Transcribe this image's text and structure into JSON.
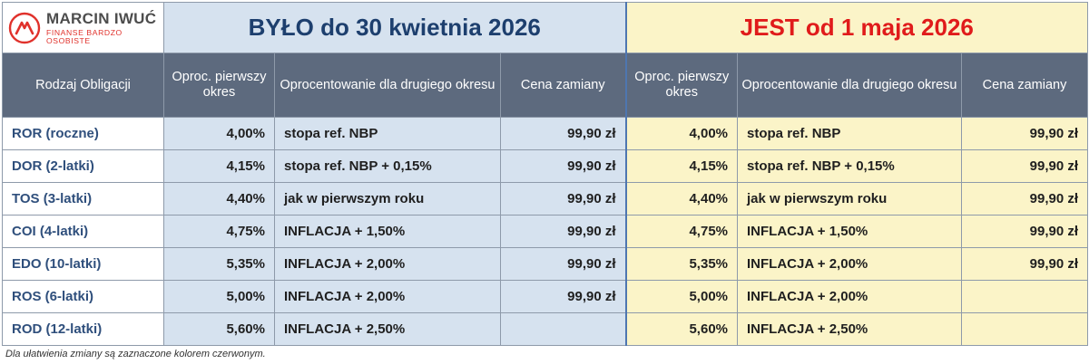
{
  "logo": {
    "name": "MARCIN IWUĆ",
    "subtitle": "FINANSE BARDZO OSOBISTE",
    "colors": {
      "brand_red": "#e0312b",
      "text_gray": "#4d4d4d"
    }
  },
  "groups": {
    "old_title": "BYŁO do 30 kwietnia 2026",
    "new_title": "JEST od 1 maja 2026"
  },
  "headers": {
    "type": "Rodzaj Obligacji",
    "old": {
      "first_period": "Oproc. pierwszy okres",
      "second_period": "Oprocentowanie dla drugiego okresu",
      "exchange_price": "Cena zamiany"
    },
    "new": {
      "first_period": "Oproc. pierwszy okres",
      "second_period": "Oprocentowanie dla drugiego okresu",
      "exchange_price": "Cena zamiany"
    }
  },
  "rows": [
    {
      "name": "ROR (roczne)",
      "old": {
        "first": "4,00%",
        "second": "stopa ref. NBP",
        "price": "99,90 zł"
      },
      "new": {
        "first": "4,00%",
        "second": "stopa ref. NBP",
        "price": "99,90 zł"
      }
    },
    {
      "name": "DOR (2-latki)",
      "old": {
        "first": "4,15%",
        "second": "stopa ref. NBP + 0,15%",
        "price": "99,90 zł"
      },
      "new": {
        "first": "4,15%",
        "second": "stopa ref. NBP + 0,15%",
        "price": "99,90 zł"
      }
    },
    {
      "name": "TOS (3-latki)",
      "old": {
        "first": "4,40%",
        "second": "jak w pierwszym roku",
        "price": "99,90 zł"
      },
      "new": {
        "first": "4,40%",
        "second": "jak w pierwszym roku",
        "price": "99,90 zł"
      }
    },
    {
      "name": "COI (4-latki)",
      "old": {
        "first": "4,75%",
        "second": "INFLACJA + 1,50%",
        "price": "99,90 zł"
      },
      "new": {
        "first": "4,75%",
        "second": "INFLACJA + 1,50%",
        "price": "99,90 zł"
      }
    },
    {
      "name": "EDO (10-latki)",
      "old": {
        "first": "5,35%",
        "second": "INFLACJA + 2,00%",
        "price": "99,90 zł"
      },
      "new": {
        "first": "5,35%",
        "second": "INFLACJA + 2,00%",
        "price": "99,90 zł"
      }
    },
    {
      "name": "ROS (6-latki)",
      "old": {
        "first": "5,00%",
        "second": "INFLACJA + 2,00%",
        "price": "99,90 zł"
      },
      "new": {
        "first": "5,00%",
        "second": "INFLACJA + 2,00%",
        "price": ""
      }
    },
    {
      "name": "ROD (12-latki)",
      "old": {
        "first": "5,60%",
        "second": "INFLACJA + 2,50%",
        "price": ""
      },
      "new": {
        "first": "5,60%",
        "second": "INFLACJA + 2,50%",
        "price": ""
      }
    }
  ],
  "footnote": "Dla ułatwienia zmiany są zaznaczone kolorem czerwonym.",
  "colors": {
    "old_bg": "#d6e2ef",
    "new_bg": "#fbf4c8",
    "header_bg": "#5d6a7e",
    "old_title": "#1d3f6e",
    "new_title": "#e01b1b",
    "name_text": "#2f4f7c"
  }
}
